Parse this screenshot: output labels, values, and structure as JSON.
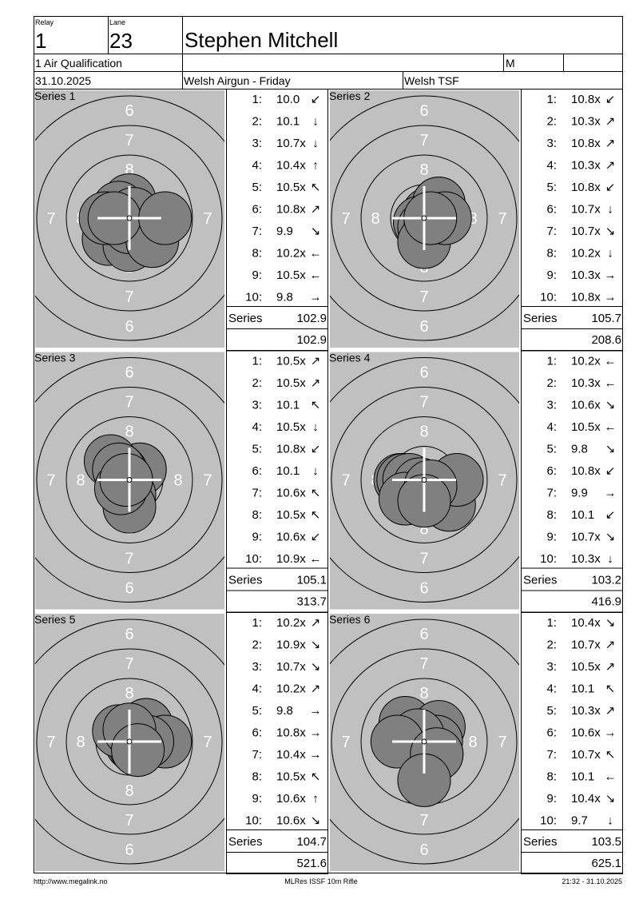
{
  "header": {
    "relay_label": "Relay",
    "relay": "1",
    "lane_label": "Lane",
    "lane": "23",
    "name": "Stephen Mitchell",
    "event": "1 Air Qualification",
    "gender": "M",
    "date": "31.10.2025",
    "club": "Welsh Airgun - Friday",
    "region": "Welsh TSF"
  },
  "ring_labels": [
    "6",
    "7",
    "8"
  ],
  "series": [
    {
      "title": "Series 1",
      "shots": [
        {
          "n": "1:",
          "score": "10.0",
          "dir": "↙"
        },
        {
          "n": "2:",
          "score": "10.1",
          "dir": "↓"
        },
        {
          "n": "3:",
          "score": "10.7x",
          "dir": "↓"
        },
        {
          "n": "4:",
          "score": "10.4x",
          "dir": "↑"
        },
        {
          "n": "5:",
          "score": "10.5x",
          "dir": "↖"
        },
        {
          "n": "6:",
          "score": "10.8x",
          "dir": "↗"
        },
        {
          "n": "7:",
          "score": "9.9",
          "dir": "↘"
        },
        {
          "n": "8:",
          "score": "10.2x",
          "dir": "←"
        },
        {
          "n": "9:",
          "score": "10.5x",
          "dir": "←"
        },
        {
          "n": "10:",
          "score": "9.8",
          "dir": "→"
        }
      ],
      "label": "Series",
      "total": "102.9",
      "cumulative": "102.9"
    },
    {
      "title": "Series 2",
      "shots": [
        {
          "n": "1:",
          "score": "10.8x",
          "dir": "↙"
        },
        {
          "n": "2:",
          "score": "10.3x",
          "dir": "↗"
        },
        {
          "n": "3:",
          "score": "10.8x",
          "dir": "↗"
        },
        {
          "n": "4:",
          "score": "10.3x",
          "dir": "↗"
        },
        {
          "n": "5:",
          "score": "10.8x",
          "dir": "↙"
        },
        {
          "n": "6:",
          "score": "10.7x",
          "dir": "↓"
        },
        {
          "n": "7:",
          "score": "10.7x",
          "dir": "↘"
        },
        {
          "n": "8:",
          "score": "10.2x",
          "dir": "↓"
        },
        {
          "n": "9:",
          "score": "10.3x",
          "dir": "→"
        },
        {
          "n": "10:",
          "score": "10.8x",
          "dir": "→"
        }
      ],
      "label": "Series",
      "total": "105.7",
      "cumulative": "208.6"
    },
    {
      "title": "Series 3",
      "shots": [
        {
          "n": "1:",
          "score": "10.5x",
          "dir": "↗"
        },
        {
          "n": "2:",
          "score": "10.5x",
          "dir": "↗"
        },
        {
          "n": "3:",
          "score": "10.1",
          "dir": "↖"
        },
        {
          "n": "4:",
          "score": "10.5x",
          "dir": "↓"
        },
        {
          "n": "5:",
          "score": "10.8x",
          "dir": "↙"
        },
        {
          "n": "6:",
          "score": "10.1",
          "dir": "↓"
        },
        {
          "n": "7:",
          "score": "10.6x",
          "dir": "↖"
        },
        {
          "n": "8:",
          "score": "10.5x",
          "dir": "↖"
        },
        {
          "n": "9:",
          "score": "10.6x",
          "dir": "↙"
        },
        {
          "n": "10:",
          "score": "10.9x",
          "dir": "←"
        }
      ],
      "label": "Series",
      "total": "105.1",
      "cumulative": "313.7"
    },
    {
      "title": "Series 4",
      "shots": [
        {
          "n": "1:",
          "score": "10.2x",
          "dir": "←"
        },
        {
          "n": "2:",
          "score": "10.3x",
          "dir": "←"
        },
        {
          "n": "3:",
          "score": "10.6x",
          "dir": "↘"
        },
        {
          "n": "4:",
          "score": "10.5x",
          "dir": "←"
        },
        {
          "n": "5:",
          "score": "9.8",
          "dir": "↘"
        },
        {
          "n": "6:",
          "score": "10.8x",
          "dir": "↙"
        },
        {
          "n": "7:",
          "score": "9.9",
          "dir": "→"
        },
        {
          "n": "8:",
          "score": "10.1",
          "dir": "↙"
        },
        {
          "n": "9:",
          "score": "10.7x",
          "dir": "↘"
        },
        {
          "n": "10:",
          "score": "10.3x",
          "dir": "↓"
        }
      ],
      "label": "Series",
      "total": "103.2",
      "cumulative": "416.9"
    },
    {
      "title": "Series 5",
      "shots": [
        {
          "n": "1:",
          "score": "10.2x",
          "dir": "↗"
        },
        {
          "n": "2:",
          "score": "10.9x",
          "dir": "↘"
        },
        {
          "n": "3:",
          "score": "10.7x",
          "dir": "↘"
        },
        {
          "n": "4:",
          "score": "10.2x",
          "dir": "↗"
        },
        {
          "n": "5:",
          "score": "9.8",
          "dir": "→"
        },
        {
          "n": "6:",
          "score": "10.8x",
          "dir": "→"
        },
        {
          "n": "7:",
          "score": "10.4x",
          "dir": "→"
        },
        {
          "n": "8:",
          "score": "10.5x",
          "dir": "↖"
        },
        {
          "n": "9:",
          "score": "10.6x",
          "dir": "↑"
        },
        {
          "n": "10:",
          "score": "10.6x",
          "dir": "↘"
        }
      ],
      "label": "Series",
      "total": "104.7",
      "cumulative": "521.6"
    },
    {
      "title": "Series 6",
      "shots": [
        {
          "n": "1:",
          "score": "10.4x",
          "dir": "↘"
        },
        {
          "n": "2:",
          "score": "10.7x",
          "dir": "↗"
        },
        {
          "n": "3:",
          "score": "10.5x",
          "dir": "↗"
        },
        {
          "n": "4:",
          "score": "10.1",
          "dir": "↖"
        },
        {
          "n": "5:",
          "score": "10.3x",
          "dir": "↗"
        },
        {
          "n": "6:",
          "score": "10.6x",
          "dir": "→"
        },
        {
          "n": "7:",
          "score": "10.7x",
          "dir": "↖"
        },
        {
          "n": "8:",
          "score": "10.1",
          "dir": "←"
        },
        {
          "n": "9:",
          "score": "10.4x",
          "dir": "↘"
        },
        {
          "n": "10:",
          "score": "9.7",
          "dir": "↓"
        }
      ],
      "label": "Series",
      "total": "103.5",
      "cumulative": "625.1"
    }
  ],
  "footer": {
    "url": "http://www.megalink.no",
    "software": "MLRes ISSF 10m Rifle",
    "timestamp": "21:32 - 31.10.2025"
  }
}
